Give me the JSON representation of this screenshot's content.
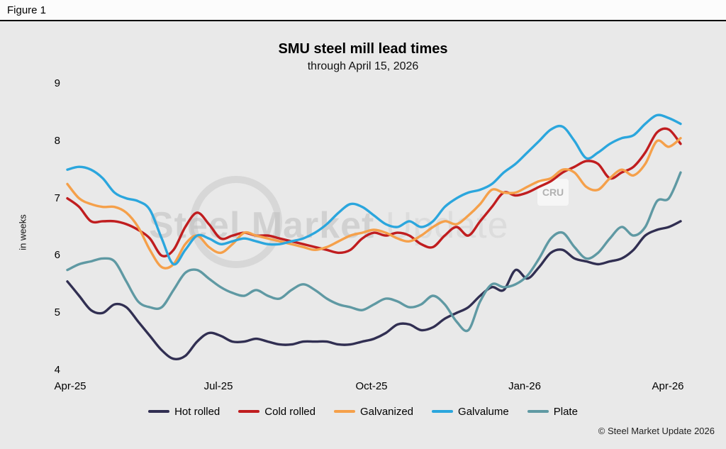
{
  "figure_label": "Figure 1",
  "title": "SMU steel mill lead times",
  "subtitle": "through April 15, 2026",
  "ylabel": "in weeks",
  "copyright": "© Steel Market Update 2026",
  "watermark": {
    "text_primary": "Steel Market",
    "text_secondary": "Update",
    "badge": "CRU"
  },
  "chart_data": {
    "type": "line",
    "title": "SMU steel mill lead times",
    "subtitle": "through April 15, 2026",
    "xlabel": "",
    "ylabel": "in weeks",
    "ylim": [
      4,
      9
    ],
    "yticks": [
      4,
      5,
      6,
      7,
      8,
      9
    ],
    "x_unit": "weekly, Apr 2025 - Apr 2026",
    "xticklabels": [
      "Apr-25",
      "Jul-25",
      "Oct-25",
      "Jan-26",
      "Apr-26"
    ],
    "xtick_indices": [
      0,
      13,
      26,
      39,
      52
    ],
    "grid": false,
    "legend_position": "bottom",
    "series": [
      {
        "name": "Hot rolled",
        "color": "#312f52",
        "values": [
          5.55,
          5.3,
          5.05,
          5.0,
          5.15,
          5.1,
          4.85,
          4.6,
          4.35,
          4.2,
          4.25,
          4.5,
          4.65,
          4.6,
          4.5,
          4.5,
          4.55,
          4.5,
          4.45,
          4.45,
          4.5,
          4.5,
          4.5,
          4.45,
          4.45,
          4.5,
          4.55,
          4.65,
          4.8,
          4.8,
          4.7,
          4.75,
          4.9,
          5.0,
          5.1,
          5.3,
          5.45,
          5.4,
          5.75,
          5.6,
          5.8,
          6.05,
          6.1,
          5.95,
          5.9,
          5.85,
          5.9,
          5.95,
          6.1,
          6.35,
          6.45,
          6.5,
          6.6
        ]
      },
      {
        "name": "Cold rolled",
        "color": "#c01d1f",
        "values": [
          7.0,
          6.85,
          6.6,
          6.6,
          6.6,
          6.55,
          6.45,
          6.3,
          6.0,
          6.1,
          6.5,
          6.75,
          6.55,
          6.3,
          6.35,
          6.4,
          6.35,
          6.35,
          6.3,
          6.25,
          6.2,
          6.15,
          6.1,
          6.05,
          6.1,
          6.3,
          6.4,
          6.35,
          6.4,
          6.35,
          6.2,
          6.15,
          6.35,
          6.5,
          6.35,
          6.6,
          6.85,
          7.1,
          7.05,
          7.1,
          7.2,
          7.3,
          7.45,
          7.55,
          7.65,
          7.6,
          7.35,
          7.45,
          7.55,
          7.8,
          8.15,
          8.2,
          7.95
        ]
      },
      {
        "name": "Galvanized",
        "color": "#f5a04a",
        "values": [
          7.25,
          7.0,
          6.9,
          6.85,
          6.85,
          6.75,
          6.5,
          6.1,
          5.8,
          5.85,
          6.2,
          6.35,
          6.15,
          6.05,
          6.2,
          6.4,
          6.35,
          6.3,
          6.25,
          6.2,
          6.15,
          6.1,
          6.15,
          6.25,
          6.35,
          6.4,
          6.45,
          6.4,
          6.3,
          6.25,
          6.35,
          6.5,
          6.6,
          6.55,
          6.7,
          6.9,
          7.15,
          7.1,
          7.1,
          7.2,
          7.3,
          7.35,
          7.5,
          7.45,
          7.2,
          7.15,
          7.35,
          7.5,
          7.4,
          7.6,
          8.0,
          7.9,
          8.05
        ]
      },
      {
        "name": "Galvalume",
        "color": "#2ba6dd",
        "values": [
          7.5,
          7.55,
          7.5,
          7.35,
          7.1,
          7.0,
          6.95,
          6.8,
          6.3,
          5.85,
          6.1,
          6.35,
          6.3,
          6.2,
          6.25,
          6.3,
          6.25,
          6.2,
          6.2,
          6.25,
          6.3,
          6.4,
          6.55,
          6.75,
          6.9,
          6.85,
          6.7,
          6.55,
          6.5,
          6.6,
          6.5,
          6.6,
          6.85,
          7.0,
          7.1,
          7.15,
          7.25,
          7.45,
          7.6,
          7.8,
          8.0,
          8.2,
          8.25,
          8.0,
          7.7,
          7.8,
          7.95,
          8.05,
          8.1,
          8.3,
          8.45,
          8.4,
          8.3
        ]
      },
      {
        "name": "Plate",
        "color": "#5f99a3",
        "values": [
          5.75,
          5.85,
          5.9,
          5.95,
          5.9,
          5.55,
          5.2,
          5.1,
          5.1,
          5.4,
          5.7,
          5.75,
          5.6,
          5.45,
          5.35,
          5.3,
          5.4,
          5.3,
          5.25,
          5.4,
          5.5,
          5.4,
          5.25,
          5.15,
          5.1,
          5.05,
          5.15,
          5.25,
          5.2,
          5.1,
          5.15,
          5.3,
          5.15,
          4.85,
          4.7,
          5.2,
          5.5,
          5.45,
          5.5,
          5.65,
          5.95,
          6.3,
          6.4,
          6.15,
          5.95,
          6.05,
          6.3,
          6.5,
          6.35,
          6.5,
          6.95,
          7.0,
          7.45
        ]
      }
    ]
  }
}
